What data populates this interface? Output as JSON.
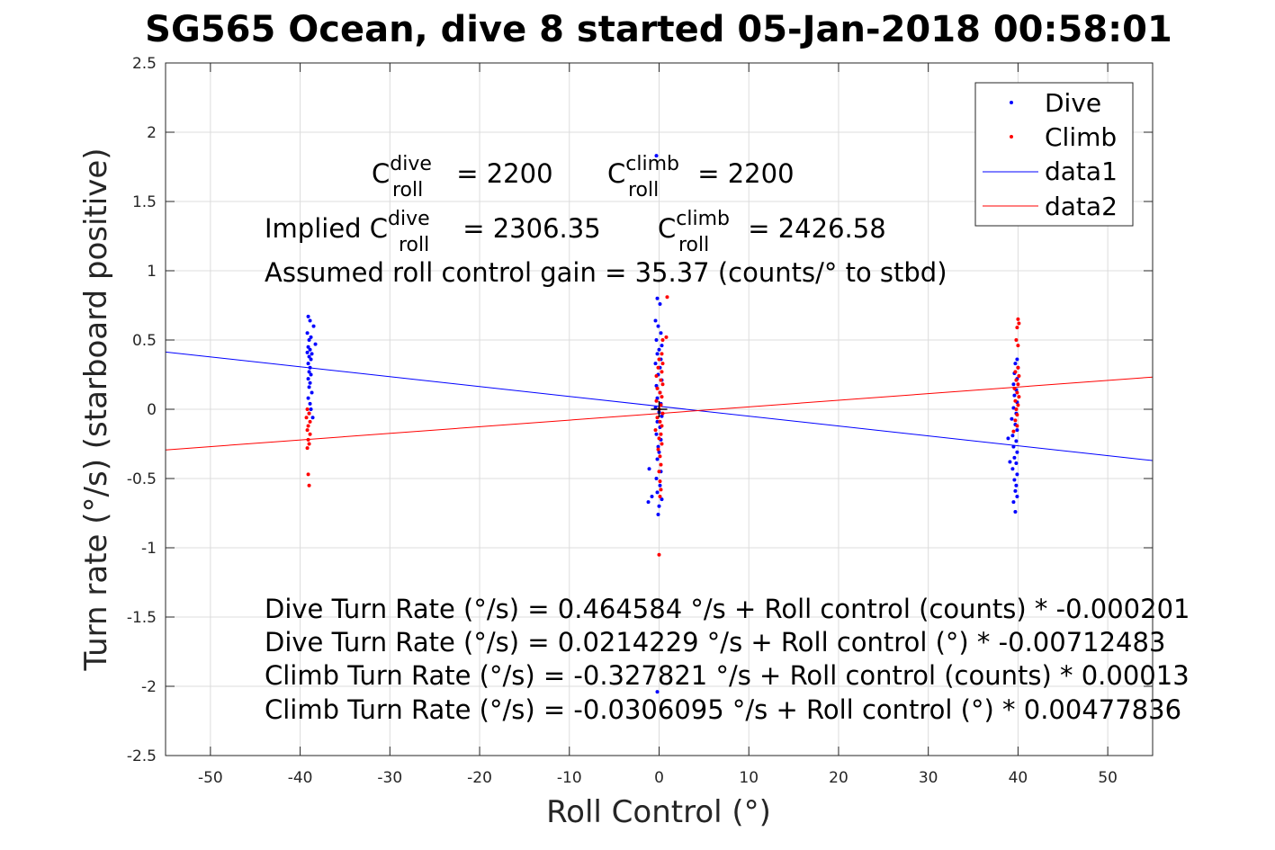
{
  "chart_data": {
    "type": "scatter",
    "title": "SG565 Ocean, dive 8 started 05-Jan-2018 00:58:01",
    "xlabel": "Roll Control (°)",
    "ylabel": "Turn rate (°/s) (starboard positive)",
    "xlim": [
      -55,
      55
    ],
    "ylim": [
      -2.5,
      2.5
    ],
    "x_ticks": [
      -50,
      -40,
      -30,
      -20,
      -10,
      0,
      10,
      20,
      30,
      40,
      50
    ],
    "x_tick_labels": [
      "-50",
      "-40",
      "-30",
      "-20",
      "-10",
      "0",
      "10",
      "20",
      "30",
      "40",
      "50"
    ],
    "y_ticks": [
      2.5,
      2,
      1.5,
      1,
      0.5,
      0,
      -0.5,
      -1,
      -1.5,
      -2,
      -2.5
    ],
    "y_tick_labels": [
      "2.5",
      "2",
      "1.5",
      "1",
      "0.5",
      "0",
      "-0.5",
      "-1",
      "-1.5",
      "-2",
      "-2.5"
    ],
    "grid": true,
    "legend_position": "top-right",
    "legend_entries": [
      "Dive",
      "Climb",
      "data1",
      "data2"
    ],
    "series": [
      {
        "name": "Dive",
        "kind": "points",
        "color": "#0000ff",
        "points": [
          [
            -39.1,
            0.67
          ],
          [
            -38.9,
            0.64
          ],
          [
            -38.5,
            0.6
          ],
          [
            -39.2,
            0.55
          ],
          [
            -38.8,
            0.52
          ],
          [
            -39.0,
            0.5
          ],
          [
            -38.3,
            0.47
          ],
          [
            -39.1,
            0.45
          ],
          [
            -38.9,
            0.43
          ],
          [
            -39.2,
            0.41
          ],
          [
            -38.7,
            0.4
          ],
          [
            -39.0,
            0.38
          ],
          [
            -38.8,
            0.36
          ],
          [
            -39.1,
            0.33
          ],
          [
            -38.9,
            0.3
          ],
          [
            -39.0,
            0.27
          ],
          [
            -38.8,
            0.25
          ],
          [
            -39.1,
            0.22
          ],
          [
            -38.9,
            0.19
          ],
          [
            -39.0,
            0.16
          ],
          [
            -38.7,
            0.12
          ],
          [
            -39.1,
            0.08
          ],
          [
            -38.9,
            0.04
          ],
          [
            -38.8,
            0.0
          ],
          [
            -39.0,
            -0.03
          ],
          [
            -38.6,
            -0.06
          ],
          [
            -0.3,
            1.83
          ],
          [
            -0.2,
            0.8
          ],
          [
            0.1,
            0.76
          ],
          [
            -0.4,
            0.64
          ],
          [
            -0.1,
            0.6
          ],
          [
            0.2,
            0.55
          ],
          [
            -0.3,
            0.5
          ],
          [
            0.3,
            0.46
          ],
          [
            0.0,
            0.43
          ],
          [
            -0.2,
            0.4
          ],
          [
            0.2,
            0.36
          ],
          [
            -0.4,
            0.33
          ],
          [
            0.1,
            0.3
          ],
          [
            -0.1,
            0.25
          ],
          [
            0.3,
            0.21
          ],
          [
            -0.3,
            0.17
          ],
          [
            0.1,
            0.12
          ],
          [
            -0.2,
            0.08
          ],
          [
            0.2,
            0.04
          ],
          [
            -0.4,
            0.01
          ],
          [
            0.0,
            -0.02
          ],
          [
            0.3,
            -0.05
          ],
          [
            -0.2,
            -0.09
          ],
          [
            0.1,
            -0.13
          ],
          [
            -0.3,
            -0.18
          ],
          [
            0.2,
            -0.22
          ],
          [
            -0.1,
            -0.27
          ],
          [
            0.0,
            -0.31
          ],
          [
            -0.2,
            -0.36
          ],
          [
            -1.1,
            -0.43
          ],
          [
            0.2,
            -0.45
          ],
          [
            -0.3,
            -0.5
          ],
          [
            0.1,
            -0.55
          ],
          [
            -0.2,
            -0.6
          ],
          [
            -0.8,
            -0.63
          ],
          [
            0.3,
            -0.65
          ],
          [
            -1.2,
            -0.67
          ],
          [
            0.0,
            -0.7
          ],
          [
            -0.1,
            -0.76
          ],
          [
            -0.2,
            -2.04
          ],
          [
            39.9,
            0.36
          ],
          [
            39.7,
            0.33
          ],
          [
            40.0,
            0.3
          ],
          [
            39.6,
            0.26
          ],
          [
            39.9,
            0.22
          ],
          [
            39.5,
            0.18
          ],
          [
            39.8,
            0.14
          ],
          [
            39.6,
            0.1
          ],
          [
            39.9,
            0.05
          ],
          [
            39.5,
            0.01
          ],
          [
            39.8,
            -0.03
          ],
          [
            39.3,
            -0.07
          ],
          [
            39.7,
            -0.11
          ],
          [
            39.9,
            -0.15
          ],
          [
            39.4,
            -0.19
          ],
          [
            39.8,
            -0.23
          ],
          [
            39.5,
            -0.27
          ],
          [
            39.9,
            -0.31
          ],
          [
            39.6,
            -0.35
          ],
          [
            39.8,
            -0.39
          ],
          [
            39.4,
            -0.43
          ],
          [
            39.9,
            -0.47
          ],
          [
            39.6,
            -0.51
          ],
          [
            39.8,
            -0.55
          ],
          [
            39.7,
            -0.59
          ],
          [
            39.9,
            -0.63
          ],
          [
            39.5,
            -0.67
          ],
          [
            39.7,
            -0.74
          ],
          [
            38.9,
            -0.21
          ],
          [
            39.1,
            -0.38
          ]
        ]
      },
      {
        "name": "Climb",
        "kind": "points",
        "color": "#ff0000",
        "points": [
          [
            -39.2,
            0.0
          ],
          [
            -39.0,
            -0.03
          ],
          [
            -39.3,
            -0.06
          ],
          [
            -38.9,
            -0.09
          ],
          [
            -39.1,
            -0.12
          ],
          [
            -39.2,
            -0.15
          ],
          [
            -38.9,
            -0.18
          ],
          [
            -39.1,
            -0.22
          ],
          [
            -39.0,
            -0.25
          ],
          [
            -39.2,
            -0.28
          ],
          [
            -39.1,
            -0.47
          ],
          [
            -39.0,
            -0.55
          ],
          [
            0.9,
            0.81
          ],
          [
            0.8,
            0.52
          ],
          [
            0.4,
            0.5
          ],
          [
            0.3,
            0.4
          ],
          [
            0.0,
            0.36
          ],
          [
            0.4,
            0.33
          ],
          [
            -0.1,
            0.3
          ],
          [
            0.3,
            0.27
          ],
          [
            -0.3,
            0.24
          ],
          [
            0.2,
            0.21
          ],
          [
            0.4,
            0.18
          ],
          [
            -0.2,
            0.15
          ],
          [
            0.1,
            0.12
          ],
          [
            0.3,
            0.09
          ],
          [
            -0.3,
            0.06
          ],
          [
            0.2,
            0.03
          ],
          [
            0.0,
            0.0
          ],
          [
            0.4,
            -0.03
          ],
          [
            -0.2,
            -0.06
          ],
          [
            0.1,
            -0.09
          ],
          [
            0.3,
            -0.12
          ],
          [
            -0.4,
            -0.15
          ],
          [
            0.2,
            -0.18
          ],
          [
            0.0,
            -0.21
          ],
          [
            0.3,
            -0.25
          ],
          [
            -0.1,
            -0.29
          ],
          [
            0.1,
            -0.34
          ],
          [
            0.2,
            -0.4
          ],
          [
            0.0,
            -0.45
          ],
          [
            0.1,
            -0.52
          ],
          [
            0.2,
            -0.58
          ],
          [
            0.1,
            -0.63
          ],
          [
            0.0,
            -1.05
          ],
          [
            40.0,
            0.65
          ],
          [
            40.1,
            0.62
          ],
          [
            39.9,
            0.59
          ],
          [
            39.8,
            0.5
          ],
          [
            40.0,
            0.46
          ],
          [
            40.0,
            0.3
          ],
          [
            39.7,
            0.27
          ],
          [
            40.1,
            0.24
          ],
          [
            39.8,
            0.21
          ],
          [
            40.0,
            0.18
          ],
          [
            39.6,
            0.15
          ],
          [
            39.9,
            0.12
          ],
          [
            40.1,
            0.09
          ],
          [
            39.7,
            0.06
          ],
          [
            40.0,
            0.03
          ],
          [
            39.8,
            0.0
          ],
          [
            39.9,
            -0.04
          ],
          [
            39.7,
            -0.08
          ],
          [
            39.9,
            -0.12
          ],
          [
            39.5,
            -0.16
          ]
        ]
      },
      {
        "name": "data1",
        "kind": "line",
        "color": "#0000ff",
        "x": [
          -55,
          55
        ],
        "y": [
          0.4133,
          -0.3705
        ]
      },
      {
        "name": "data2",
        "kind": "line",
        "color": "#ff0000",
        "x": [
          -55,
          55
        ],
        "y": [
          -0.2935,
          0.2323
        ]
      }
    ],
    "origin_marker": {
      "kind": "plus",
      "color": "#000000",
      "x": 0,
      "y": 0
    },
    "annotations": {
      "c_dive": {
        "base": "C",
        "sup": "dive",
        "sub": "roll",
        "rest": " = 2200"
      },
      "c_climb": {
        "base": "C",
        "sup": "climb",
        "sub": "roll",
        "rest": " = 2200"
      },
      "implied_prefix": "Implied C",
      "implied_dive": {
        "sup": "dive",
        "sub": "roll",
        "rest": " = 2306.35"
      },
      "implied_climb": {
        "base": "C",
        "sup": "climb",
        "sub": "roll",
        "rest": " = 2426.58"
      },
      "gain": "Assumed roll control gain = 35.37 (counts/° to stbd)",
      "fit_lines": [
        "Dive Turn Rate (°/s) = 0.464584 °/s + Roll control (counts) * -0.000201",
        "Dive Turn Rate (°/s) = 0.0214229 °/s + Roll control (°) * -0.00712483",
        "Climb Turn Rate (°/s) = -0.327821 °/s + Roll control (counts) * 0.00013",
        "Climb Turn Rate (°/s) = -0.0306095 °/s + Roll control (°) * 0.00477836"
      ]
    }
  }
}
